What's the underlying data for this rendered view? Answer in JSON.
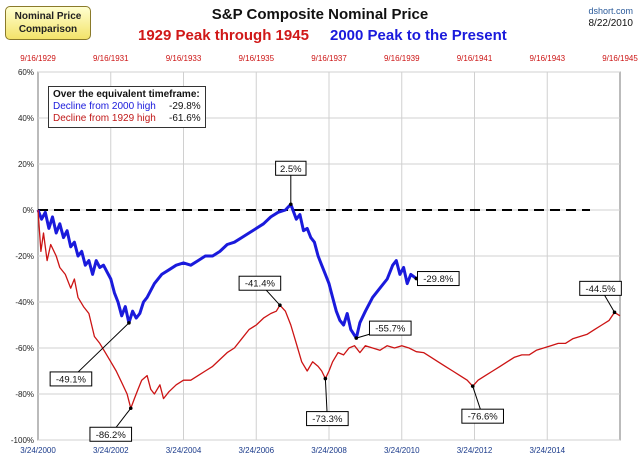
{
  "badge": {
    "line1": "Nominal Price",
    "line2": "Comparison"
  },
  "header": {
    "title": "S&P Composite Nominal Price",
    "subtitle_red": "1929 Peak through 1945",
    "subtitle_blue": "2000 Peak to the Present",
    "source": "dshort.com",
    "date": "8/22/2010"
  },
  "legend": {
    "heading": "Over the equivalent timeframe:",
    "blue_label": "Decline from 2000 high",
    "blue_value": "-29.8%",
    "red_label": "Decline from 1929 high",
    "red_value": "-61.6%"
  },
  "colors": {
    "blue": "#1a1adc",
    "red": "#cc1414",
    "top_axis": "#cc1414"
  },
  "chart_data": {
    "type": "line",
    "title": "S&P Composite Nominal Price",
    "ylim": [
      -100,
      60
    ],
    "y_ticks": [
      "60%",
      "40%",
      "20%",
      "0%",
      "-20%",
      "-40%",
      "-60%",
      "-80%",
      "-100%"
    ],
    "y_tick_values": [
      60,
      40,
      20,
      0,
      -20,
      -40,
      -60,
      -80,
      -100
    ],
    "x_ticks_bottom": [
      "3/24/2000",
      "3/24/2002",
      "3/24/2004",
      "3/24/2006",
      "3/24/2008",
      "3/24/2010",
      "3/24/2012",
      "3/24/2014"
    ],
    "x_ticks_top": [
      "9/16/1929",
      "9/16/1931",
      "9/16/1933",
      "9/16/1935",
      "9/16/1937",
      "9/16/1939",
      "9/16/1941",
      "9/16/1943",
      "9/16/1945"
    ],
    "reference_line": 0,
    "xlim_years": [
      0,
      16
    ],
    "series": [
      {
        "name": "2000 Peak to the Present",
        "color": "#1a1adc",
        "points": [
          [
            0,
            0
          ],
          [
            0.1,
            -4
          ],
          [
            0.2,
            -1
          ],
          [
            0.3,
            -8
          ],
          [
            0.4,
            -3
          ],
          [
            0.5,
            -10
          ],
          [
            0.6,
            -6
          ],
          [
            0.7,
            -12
          ],
          [
            0.8,
            -9
          ],
          [
            0.9,
            -16
          ],
          [
            1.0,
            -14
          ],
          [
            1.1,
            -20
          ],
          [
            1.2,
            -18
          ],
          [
            1.3,
            -24
          ],
          [
            1.4,
            -22
          ],
          [
            1.5,
            -28
          ],
          [
            1.6,
            -22
          ],
          [
            1.7,
            -25
          ],
          [
            1.8,
            -24
          ],
          [
            1.9,
            -27
          ],
          [
            2.0,
            -30
          ],
          [
            2.1,
            -36
          ],
          [
            2.2,
            -40
          ],
          [
            2.3,
            -46
          ],
          [
            2.4,
            -42
          ],
          [
            2.5,
            -49.1
          ],
          [
            2.6,
            -44
          ],
          [
            2.7,
            -47
          ],
          [
            2.8,
            -45
          ],
          [
            2.9,
            -40
          ],
          [
            3.0,
            -38
          ],
          [
            3.2,
            -32
          ],
          [
            3.4,
            -28
          ],
          [
            3.6,
            -26
          ],
          [
            3.8,
            -24
          ],
          [
            4.0,
            -23
          ],
          [
            4.2,
            -24
          ],
          [
            4.4,
            -22
          ],
          [
            4.6,
            -20
          ],
          [
            4.8,
            -20
          ],
          [
            5.0,
            -18
          ],
          [
            5.2,
            -15
          ],
          [
            5.4,
            -14
          ],
          [
            5.6,
            -12
          ],
          [
            5.8,
            -10
          ],
          [
            6.0,
            -8
          ],
          [
            6.2,
            -6
          ],
          [
            6.4,
            -3
          ],
          [
            6.6,
            -1
          ],
          [
            6.8,
            0
          ],
          [
            6.95,
            2.5
          ],
          [
            7.1,
            -4
          ],
          [
            7.2,
            -2
          ],
          [
            7.3,
            -9
          ],
          [
            7.4,
            -8
          ],
          [
            7.5,
            -12
          ],
          [
            7.6,
            -14
          ],
          [
            7.7,
            -20
          ],
          [
            7.8,
            -24
          ],
          [
            7.9,
            -28
          ],
          [
            8.0,
            -32
          ],
          [
            8.1,
            -38
          ],
          [
            8.2,
            -44
          ],
          [
            8.3,
            -48
          ],
          [
            8.4,
            -50
          ],
          [
            8.5,
            -45
          ],
          [
            8.6,
            -52
          ],
          [
            8.75,
            -55.7
          ],
          [
            8.85,
            -49
          ],
          [
            9.0,
            -44
          ],
          [
            9.2,
            -38
          ],
          [
            9.4,
            -34
          ],
          [
            9.6,
            -30
          ],
          [
            9.75,
            -24
          ],
          [
            9.85,
            -22
          ],
          [
            9.95,
            -28
          ],
          [
            10.05,
            -25
          ],
          [
            10.15,
            -32
          ],
          [
            10.25,
            -28
          ],
          [
            10.4,
            -29.8
          ]
        ]
      },
      {
        "name": "1929 Peak through 1945",
        "color": "#cc1414",
        "points": [
          [
            0,
            0
          ],
          [
            0.08,
            -18
          ],
          [
            0.15,
            -10
          ],
          [
            0.25,
            -22
          ],
          [
            0.35,
            -15
          ],
          [
            0.5,
            -20
          ],
          [
            0.6,
            -25
          ],
          [
            0.75,
            -28
          ],
          [
            0.9,
            -34
          ],
          [
            1.0,
            -30
          ],
          [
            1.1,
            -38
          ],
          [
            1.25,
            -42
          ],
          [
            1.4,
            -45
          ],
          [
            1.55,
            -55
          ],
          [
            1.7,
            -58
          ],
          [
            1.85,
            -62
          ],
          [
            2.0,
            -66
          ],
          [
            2.15,
            -70
          ],
          [
            2.3,
            -75
          ],
          [
            2.45,
            -80
          ],
          [
            2.55,
            -86.2
          ],
          [
            2.65,
            -82
          ],
          [
            2.75,
            -78
          ],
          [
            2.85,
            -74
          ],
          [
            3.0,
            -72
          ],
          [
            3.1,
            -78
          ],
          [
            3.2,
            -80
          ],
          [
            3.35,
            -76
          ],
          [
            3.45,
            -82
          ],
          [
            3.6,
            -79
          ],
          [
            3.8,
            -76
          ],
          [
            4.0,
            -74
          ],
          [
            4.2,
            -74
          ],
          [
            4.4,
            -72
          ],
          [
            4.6,
            -70
          ],
          [
            4.8,
            -68
          ],
          [
            5.0,
            -65
          ],
          [
            5.2,
            -62
          ],
          [
            5.4,
            -60
          ],
          [
            5.6,
            -56
          ],
          [
            5.8,
            -52
          ],
          [
            6.0,
            -50
          ],
          [
            6.2,
            -47
          ],
          [
            6.4,
            -45
          ],
          [
            6.55,
            -44
          ],
          [
            6.65,
            -41.4
          ],
          [
            6.8,
            -44
          ],
          [
            6.95,
            -50
          ],
          [
            7.1,
            -58
          ],
          [
            7.25,
            -66
          ],
          [
            7.4,
            -70
          ],
          [
            7.55,
            -66
          ],
          [
            7.7,
            -68
          ],
          [
            7.8,
            -70
          ],
          [
            7.9,
            -73.3
          ],
          [
            8.0,
            -70
          ],
          [
            8.1,
            -66
          ],
          [
            8.25,
            -62
          ],
          [
            8.4,
            -63
          ],
          [
            8.55,
            -60
          ],
          [
            8.7,
            -59
          ],
          [
            8.85,
            -62
          ],
          [
            9.0,
            -59
          ],
          [
            9.2,
            -60
          ],
          [
            9.4,
            -61
          ],
          [
            9.6,
            -59
          ],
          [
            9.8,
            -60
          ],
          [
            10.0,
            -59
          ],
          [
            10.2,
            -60
          ],
          [
            10.4,
            -61.6
          ],
          [
            10.6,
            -62
          ],
          [
            10.8,
            -64
          ],
          [
            11.0,
            -66
          ],
          [
            11.2,
            -68
          ],
          [
            11.4,
            -70
          ],
          [
            11.6,
            -72
          ],
          [
            11.8,
            -74
          ],
          [
            11.95,
            -76.6
          ],
          [
            12.1,
            -74
          ],
          [
            12.3,
            -72
          ],
          [
            12.5,
            -70
          ],
          [
            12.7,
            -68
          ],
          [
            12.9,
            -66
          ],
          [
            13.1,
            -64
          ],
          [
            13.3,
            -63
          ],
          [
            13.5,
            -63
          ],
          [
            13.7,
            -61
          ],
          [
            13.9,
            -60
          ],
          [
            14.1,
            -59
          ],
          [
            14.3,
            -58
          ],
          [
            14.5,
            -58
          ],
          [
            14.7,
            -56
          ],
          [
            14.9,
            -55
          ],
          [
            15.1,
            -54
          ],
          [
            15.3,
            -52
          ],
          [
            15.5,
            -50
          ],
          [
            15.7,
            -48
          ],
          [
            15.85,
            -44.5
          ],
          [
            16.0,
            -46
          ]
        ]
      }
    ],
    "annotations": [
      {
        "label": "2.5%",
        "series": 0,
        "x": 6.95,
        "y": 2.5,
        "dx": 0,
        "dy": -36
      },
      {
        "label": "-29.8%",
        "series": 0,
        "x": 10.4,
        "y": -29.8,
        "dx": 22,
        "dy": 0
      },
      {
        "label": "-49.1%",
        "series": 0,
        "x": 2.5,
        "y": -49.1,
        "dx": -58,
        "dy": 56
      },
      {
        "label": "-55.7%",
        "series": 0,
        "x": 8.75,
        "y": -55.7,
        "dx": 34,
        "dy": -10
      },
      {
        "label": "-41.4%",
        "series": 1,
        "x": 6.65,
        "y": -41.4,
        "dx": -20,
        "dy": -22
      },
      {
        "label": "-73.3%",
        "series": 1,
        "x": 7.9,
        "y": -73.3,
        "dx": 2,
        "dy": 40
      },
      {
        "label": "-86.2%",
        "series": 1,
        "x": 2.55,
        "y": -86.2,
        "dx": -20,
        "dy": 26
      },
      {
        "label": "-76.6%",
        "series": 1,
        "x": 11.95,
        "y": -76.6,
        "dx": 10,
        "dy": 30
      },
      {
        "label": "-44.5%",
        "series": 1,
        "x": 15.85,
        "y": -44.5,
        "dx": -14,
        "dy": -24
      }
    ]
  }
}
